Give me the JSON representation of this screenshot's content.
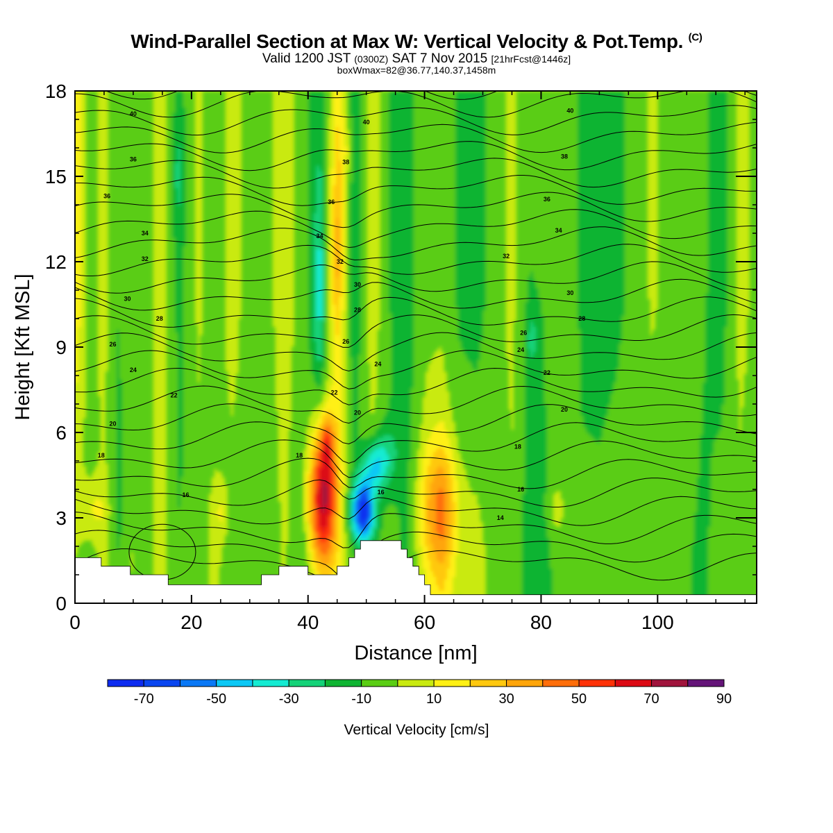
{
  "header": {
    "title_main": "Wind-Parallel Section at Max W: Vertical Velocity & Pot.Temp.",
    "title_tag": "(C)",
    "valid_a": "Valid 1200 JST",
    "valid_z": "(0300Z)",
    "valid_b": "SAT 7 Nov 2015",
    "valid_fcst": "[21hrFcst@1446z]",
    "box_info": "boxWmax=82@36.77,140.37,1458m"
  },
  "colors": {
    "background": "#C9EA10",
    "terrain": "#ffffff",
    "contour": "#000000"
  },
  "chart_data": {
    "type": "heatmap",
    "xlabel": "Distance [nm]",
    "ylabel": "Height [Kft MSL]",
    "xlim": [
      0,
      117
    ],
    "ylim": [
      0,
      18
    ],
    "x_ticks": [
      0,
      20,
      40,
      60,
      80,
      100
    ],
    "y_ticks": [
      0,
      3,
      6,
      9,
      12,
      15,
      18
    ],
    "colorbar": {
      "label": "Vertical Velocity [cm/s]",
      "tick_labels": [
        "-70",
        "-50",
        "-30",
        "-10",
        "10",
        "30",
        "50",
        "70",
        "90"
      ],
      "bins": [
        {
          "from": -80,
          "to": -70,
          "color": "#0E2CF0"
        },
        {
          "from": -70,
          "to": -60,
          "color": "#0A46F0"
        },
        {
          "from": -60,
          "to": -50,
          "color": "#0A78F5"
        },
        {
          "from": -50,
          "to": -40,
          "color": "#0CC8F5"
        },
        {
          "from": -40,
          "to": -30,
          "color": "#14EBD2"
        },
        {
          "from": -30,
          "to": -20,
          "color": "#14D278"
        },
        {
          "from": -20,
          "to": -10,
          "color": "#0FB432"
        },
        {
          "from": -10,
          "to": 0,
          "color": "#5ACD14"
        },
        {
          "from": 0,
          "to": 10,
          "color": "#C9EA10"
        },
        {
          "from": 10,
          "to": 20,
          "color": "#FFF014"
        },
        {
          "from": 20,
          "to": 30,
          "color": "#FFC80F"
        },
        {
          "from": 30,
          "to": 40,
          "color": "#FFA50A"
        },
        {
          "from": 40,
          "to": 50,
          "color": "#FF6E0A"
        },
        {
          "from": 50,
          "to": 60,
          "color": "#FF3208"
        },
        {
          "from": 60,
          "to": 70,
          "color": "#DC0A14"
        },
        {
          "from": 70,
          "to": 80,
          "color": "#A0143C"
        },
        {
          "from": 80,
          "to": 90,
          "color": "#641478"
        }
      ]
    },
    "vertical_velocity_features": [
      {
        "kind": "updraft",
        "x": 42.5,
        "y": 3.7,
        "peak": 82
      },
      {
        "kind": "downdraft",
        "x": 49.5,
        "y": 3.3,
        "peak": -75
      },
      {
        "kind": "updraft",
        "x": 62.5,
        "y": 3.3,
        "peak": 35
      },
      {
        "kind": "updraft",
        "x": 3,
        "y": 3.3,
        "peak": 18
      },
      {
        "kind": "updraft",
        "x": 45,
        "y": 12.5,
        "peak": 18
      },
      {
        "kind": "downdraft",
        "x": 42,
        "y": 11,
        "peak": -18
      }
    ],
    "terrain_profile": {
      "x": [
        0,
        4.5,
        4.5,
        9.5,
        9.5,
        16,
        16,
        32,
        32,
        35,
        35,
        38,
        38,
        40,
        40,
        45,
        45,
        47,
        47,
        48,
        48,
        49,
        49,
        56,
        56,
        57,
        57,
        58,
        58,
        59,
        59,
        60,
        60,
        61,
        61,
        117
      ],
      "y": [
        1.6,
        1.6,
        1.3,
        1.3,
        1.0,
        1.0,
        0.65,
        0.65,
        1.0,
        1.0,
        1.3,
        1.3,
        1.3,
        1.3,
        1.0,
        1.0,
        1.3,
        1.3,
        1.6,
        1.6,
        1.9,
        1.9,
        2.2,
        2.2,
        1.9,
        1.9,
        1.6,
        1.6,
        1.3,
        1.3,
        1.0,
        1.0,
        0.65,
        0.65,
        0.3,
        0.3
      ]
    },
    "theta_contours": {
      "levels": [
        14,
        15,
        16,
        17,
        18,
        19,
        20,
        21,
        22,
        23,
        24,
        25,
        26,
        27,
        28,
        29,
        30,
        31,
        32,
        33,
        34,
        35,
        36,
        37,
        38,
        39,
        40,
        41
      ],
      "labels": [
        {
          "text": "40",
          "x": 10,
          "y": 17.2
        },
        {
          "text": "36",
          "x": 10,
          "y": 15.6
        },
        {
          "text": "36",
          "x": 5.5,
          "y": 14.3
        },
        {
          "text": "34",
          "x": 12,
          "y": 13
        },
        {
          "text": "32",
          "x": 12,
          "y": 12.1
        },
        {
          "text": "30",
          "x": 9,
          "y": 10.7
        },
        {
          "text": "28",
          "x": 14.5,
          "y": 10
        },
        {
          "text": "26",
          "x": 6.5,
          "y": 9.1
        },
        {
          "text": "24",
          "x": 10,
          "y": 8.2
        },
        {
          "text": "22",
          "x": 17,
          "y": 7.3
        },
        {
          "text": "20",
          "x": 6.5,
          "y": 6.3
        },
        {
          "text": "18",
          "x": 4.5,
          "y": 5.2
        },
        {
          "text": "16",
          "x": 19,
          "y": 3.8
        },
        {
          "text": "40",
          "x": 50,
          "y": 16.9
        },
        {
          "text": "38",
          "x": 46.5,
          "y": 15.5
        },
        {
          "text": "36",
          "x": 44,
          "y": 14.1
        },
        {
          "text": "34",
          "x": 42,
          "y": 12.9
        },
        {
          "text": "32",
          "x": 45.5,
          "y": 12
        },
        {
          "text": "30",
          "x": 48.5,
          "y": 11.2
        },
        {
          "text": "28",
          "x": 48.5,
          "y": 10.3
        },
        {
          "text": "26",
          "x": 46.5,
          "y": 9.2
        },
        {
          "text": "24",
          "x": 52,
          "y": 8.4
        },
        {
          "text": "22",
          "x": 44.5,
          "y": 7.4
        },
        {
          "text": "20",
          "x": 48.5,
          "y": 6.7
        },
        {
          "text": "18",
          "x": 38.5,
          "y": 5.2
        },
        {
          "text": "16",
          "x": 52.5,
          "y": 3.9
        },
        {
          "text": "40",
          "x": 85,
          "y": 17.3
        },
        {
          "text": "38",
          "x": 84,
          "y": 15.7
        },
        {
          "text": "36",
          "x": 81,
          "y": 14.2
        },
        {
          "text": "34",
          "x": 83,
          "y": 13.1
        },
        {
          "text": "32",
          "x": 74,
          "y": 12.2
        },
        {
          "text": "30",
          "x": 85,
          "y": 10.9
        },
        {
          "text": "28",
          "x": 87,
          "y": 10
        },
        {
          "text": "26",
          "x": 77,
          "y": 9.5
        },
        {
          "text": "24",
          "x": 76.5,
          "y": 8.9
        },
        {
          "text": "22",
          "x": 81,
          "y": 8.1
        },
        {
          "text": "20",
          "x": 84,
          "y": 6.8
        },
        {
          "text": "18",
          "x": 76,
          "y": 5.5
        },
        {
          "text": "16",
          "x": 76.5,
          "y": 4
        },
        {
          "text": "14",
          "x": 73,
          "y": 3
        }
      ]
    }
  }
}
